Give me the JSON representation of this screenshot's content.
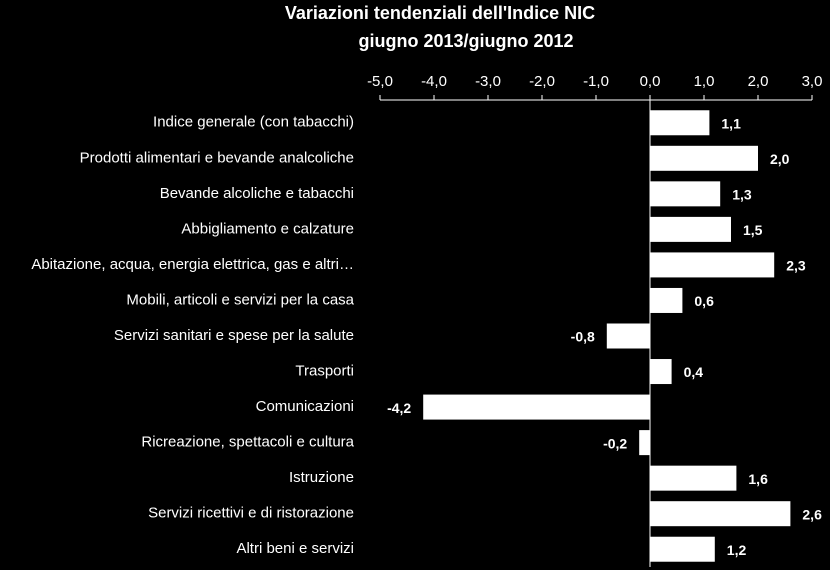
{
  "chart_data": {
    "type": "hbar",
    "title": "Variazioni tendenziali dell'Indice NIC",
    "subtitle": "giugno 2013/giugno 2012",
    "categories": [
      "Indice generale (con tabacchi)",
      "Prodotti alimentari e bevande analcoliche",
      "Bevande alcoliche e tabacchi",
      "Abbigliamento e calzature",
      "Abitazione, acqua, energia elettrica, gas e altri…",
      "Mobili, articoli e servizi per la casa",
      "Servizi sanitari e spese per la salute",
      "Trasporti",
      "Comunicazioni",
      "Ricreazione, spettacoli e cultura",
      "Istruzione",
      "Servizi ricettivi e di ristorazione",
      "Altri beni e servizi"
    ],
    "values": [
      1.1,
      2.0,
      1.3,
      1.5,
      2.3,
      0.6,
      -0.8,
      0.4,
      -4.2,
      -0.2,
      1.6,
      2.6,
      1.2
    ],
    "value_labels": [
      "1,1",
      "2,0",
      "1,3",
      "1,5",
      "2,3",
      "0,6",
      "-0,8",
      "0,4",
      "-4,2",
      "-0,2",
      "1,6",
      "2,6",
      "1,2"
    ],
    "color": "#ffffff",
    "xlim": [
      -5,
      3
    ],
    "xticks": [
      {
        "value": -5,
        "label": "-5,0"
      },
      {
        "value": -4,
        "label": "-4,0"
      },
      {
        "value": -3,
        "label": "-3,0"
      },
      {
        "value": -2,
        "label": "-2,0"
      },
      {
        "value": -1,
        "label": "-1,0"
      },
      {
        "value": 0,
        "label": "0,0"
      },
      {
        "value": 1,
        "label": "1,0"
      },
      {
        "value": 2,
        "label": "2,0"
      },
      {
        "value": 3,
        "label": "3,0"
      }
    ]
  }
}
